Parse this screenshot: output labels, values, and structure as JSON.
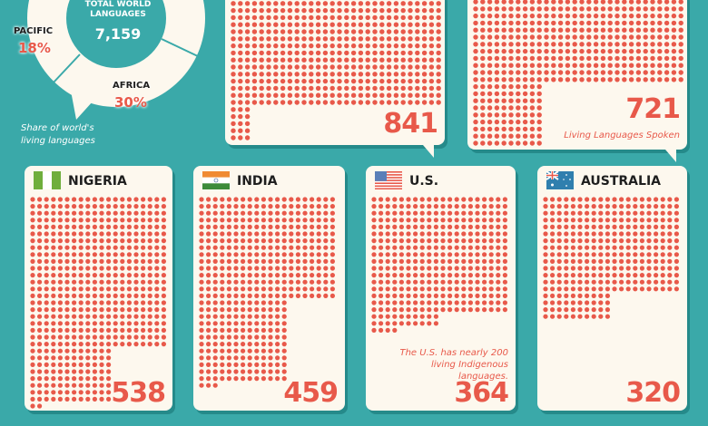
{
  "donut": {
    "center_title": "TOTAL WORLD LANGUAGES",
    "center_value": "7,159",
    "regions": [
      {
        "name": "PACIFIC",
        "share": "18%"
      },
      {
        "name": "AFRICA",
        "share": "30%"
      }
    ],
    "caption": "Share of world's living languages"
  },
  "top_cards": [
    {
      "value": "841",
      "subtitle": ""
    },
    {
      "value": "721",
      "subtitle": "Living Languages Spoken"
    }
  ],
  "countries": [
    {
      "name": "NIGERIA",
      "value": "538",
      "flag": "nigeria-flag",
      "note": ""
    },
    {
      "name": "INDIA",
      "value": "459",
      "flag": "india-flag",
      "note": ""
    },
    {
      "name": "U.S.",
      "value": "364",
      "flag": "us-flag",
      "note": "The U.S. has nearly 200 living Indigenous languages."
    },
    {
      "name": "AUSTRALIA",
      "value": "320",
      "flag": "australia-flag",
      "note": ""
    }
  ],
  "colors": {
    "background": "#3aa9a9",
    "card": "#fdf8ee",
    "dot": "#e8594a"
  },
  "chart_data": {
    "type": "pictogram",
    "unit": "Living Languages Spoken",
    "categories": [
      "(top card 1)",
      "(top card 2)",
      "NIGERIA",
      "INDIA",
      "U.S.",
      "AUSTRALIA"
    ],
    "values": [
      841,
      721,
      538,
      459,
      364,
      320
    ],
    "total_world_languages": 7159,
    "shares": [
      {
        "region": "PACIFIC",
        "percent": 18
      },
      {
        "region": "AFRICA",
        "percent": 30
      }
    ]
  }
}
